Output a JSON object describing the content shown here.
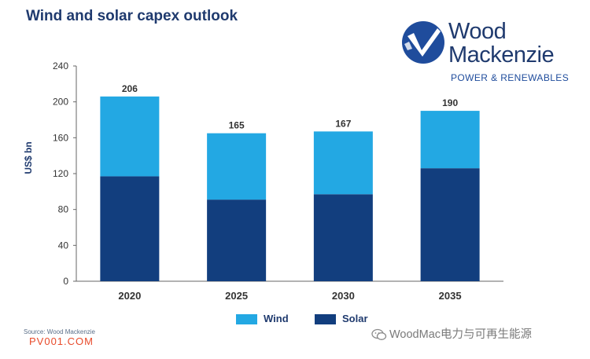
{
  "title": "Wind and solar capex outlook",
  "logo": {
    "line1": "Wood",
    "line2": "Mackenzie",
    "tagline": "POWER & RENEWABLES",
    "icon": "wood-mackenzie-logo-icon"
  },
  "source": "Source: Wood Mackenzie",
  "watermark": "PV001.COM",
  "wechat": {
    "icon": "wechat-icon",
    "label": "WoodMac电力与可再生能源"
  },
  "colors": {
    "title": "#1f3a6e",
    "wind": "#23a8e3",
    "solar": "#123e7e",
    "axis": "#555555",
    "watermark": "#e84a2a"
  },
  "chart_data": {
    "type": "bar",
    "stacked": true,
    "categories": [
      "2020",
      "2025",
      "2030",
      "2035"
    ],
    "series": [
      {
        "name": "Solar",
        "values": [
          117,
          91,
          97,
          126
        ]
      },
      {
        "name": "Wind",
        "values": [
          89,
          74,
          70,
          64
        ]
      }
    ],
    "totals": [
      206,
      165,
      167,
      190
    ],
    "ylabel": "US$ bn",
    "ylim": [
      0,
      240
    ],
    "yticks": [
      0,
      40,
      80,
      120,
      160,
      200,
      240
    ],
    "grid": false,
    "legend": {
      "placement": "bottom",
      "items": [
        "Wind",
        "Solar"
      ]
    }
  }
}
